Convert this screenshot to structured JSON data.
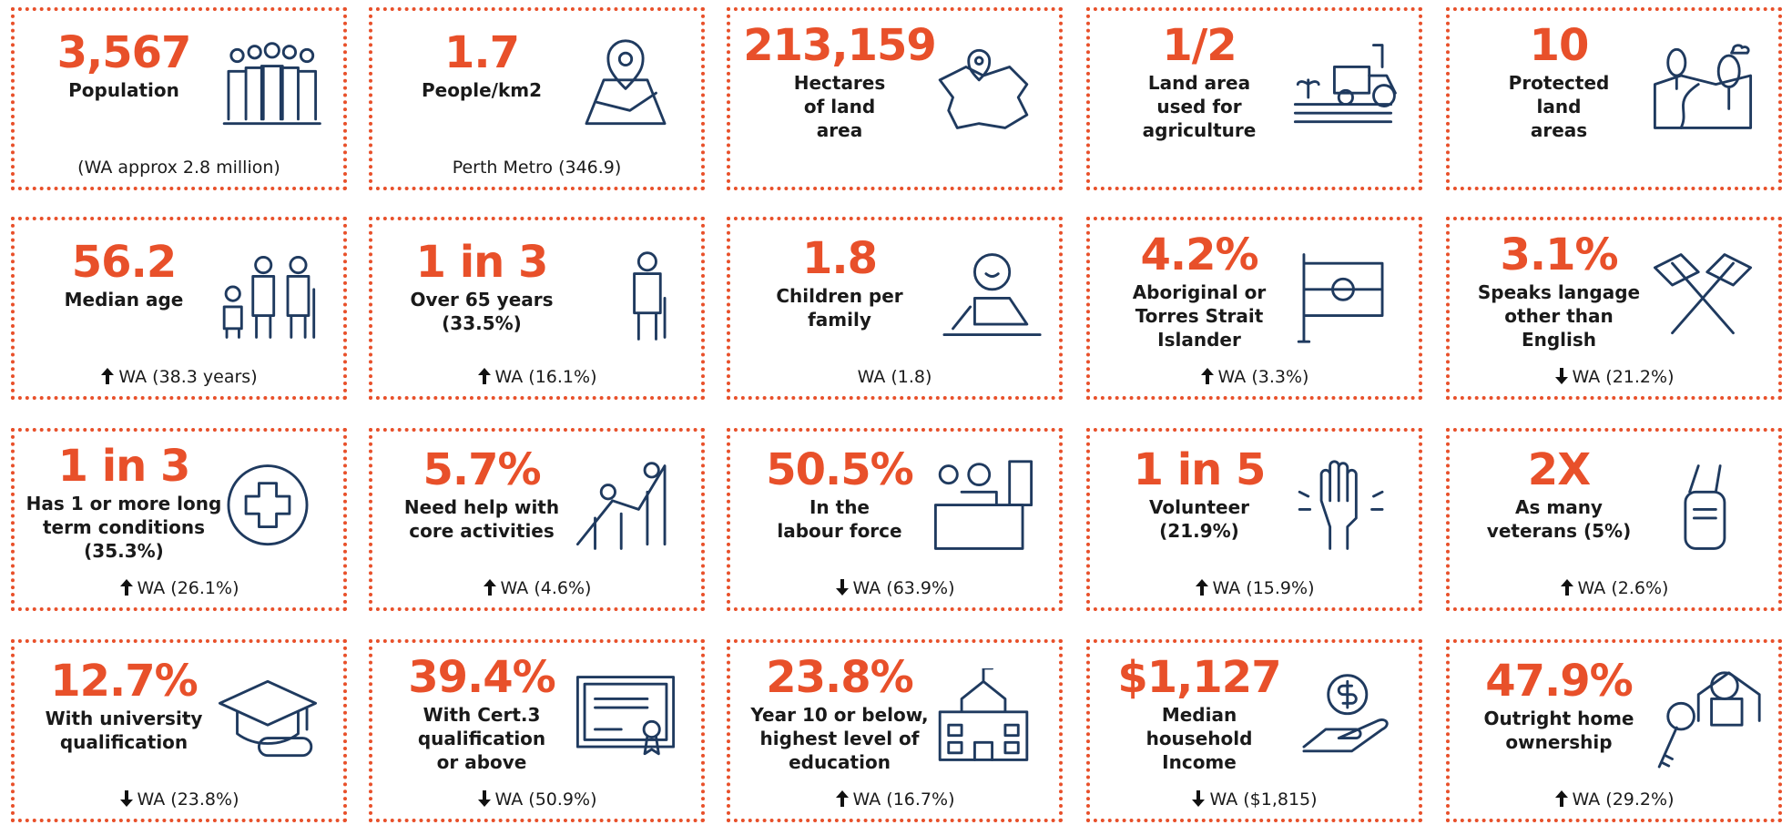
{
  "cards": [
    {
      "value": "3,567",
      "label": [
        "Population"
      ],
      "note": "(WA approx 2.8 million)"
    },
    {
      "value": "1.7",
      "label": [
        "People/km2"
      ],
      "note": "Perth Metro (346.9)"
    },
    {
      "value": "213,159",
      "label": [
        "Hectares",
        "of land",
        "area"
      ]
    },
    {
      "value": "1/2",
      "label": [
        "Land area",
        "used for",
        "agriculture"
      ]
    },
    {
      "value": "10",
      "label": [
        "Protected",
        "land",
        "areas"
      ]
    },
    {
      "value": "56.2",
      "label": [
        "Median age"
      ],
      "note": "WA (38.3 years)",
      "trend": "up"
    },
    {
      "value": "1 in 3",
      "label": [
        "Over 65 years (33.5%)"
      ],
      "note": "WA (16.1%)",
      "trend": "up"
    },
    {
      "value": "1.8",
      "label": [
        "Children per",
        "family"
      ],
      "note": "WA (1.8)"
    },
    {
      "value": "4.2%",
      "label": [
        "Aboriginal or",
        "Torres Strait",
        "Islander"
      ],
      "note": "WA (3.3%)",
      "trend": "up"
    },
    {
      "value": "3.1%",
      "label": [
        "Speaks langage",
        "other than",
        "English"
      ],
      "note": "WA (21.2%)",
      "trend": "down"
    },
    {
      "value": "1 in 3",
      "label": [
        "Has 1 or more long",
        "term conditions",
        "(35.3%)"
      ],
      "note": "WA (26.1%)",
      "trend": "up"
    },
    {
      "value": "5.7%",
      "label": [
        "Need help with",
        "core activities"
      ],
      "note": "WA (4.6%)",
      "trend": "up"
    },
    {
      "value": "50.5%",
      "label": [
        "In the",
        "labour force"
      ],
      "note": "WA (63.9%)",
      "trend": "down"
    },
    {
      "value": "1 in 5",
      "label": [
        "Volunteer",
        "(21.9%)"
      ],
      "note": "WA (15.9%)",
      "trend": "up"
    },
    {
      "value": "2X",
      "label": [
        "As many",
        "veterans (5%)"
      ],
      "note": "WA (2.6%)",
      "trend": "up"
    },
    {
      "value": "12.7%",
      "label": [
        "With university",
        "qualification"
      ],
      "note": "WA (23.8%)",
      "trend": "down"
    },
    {
      "value": "39.4%",
      "label": [
        "With Cert.3",
        "qualification",
        "or above"
      ],
      "note": "WA (50.9%)",
      "trend": "down"
    },
    {
      "value": "23.8%",
      "label": [
        "Year 10 or below,",
        "highest level of",
        "education"
      ],
      "note": "WA (16.7%)",
      "trend": "up"
    },
    {
      "value": "$1,127",
      "label": [
        "Median",
        "household",
        "Income"
      ],
      "note": "WA ($1,815)",
      "trend": "down"
    },
    {
      "value": "47.9%",
      "label": [
        "Outright home",
        "ownership"
      ],
      "note": "WA (29.2%)",
      "trend": "up"
    }
  ]
}
